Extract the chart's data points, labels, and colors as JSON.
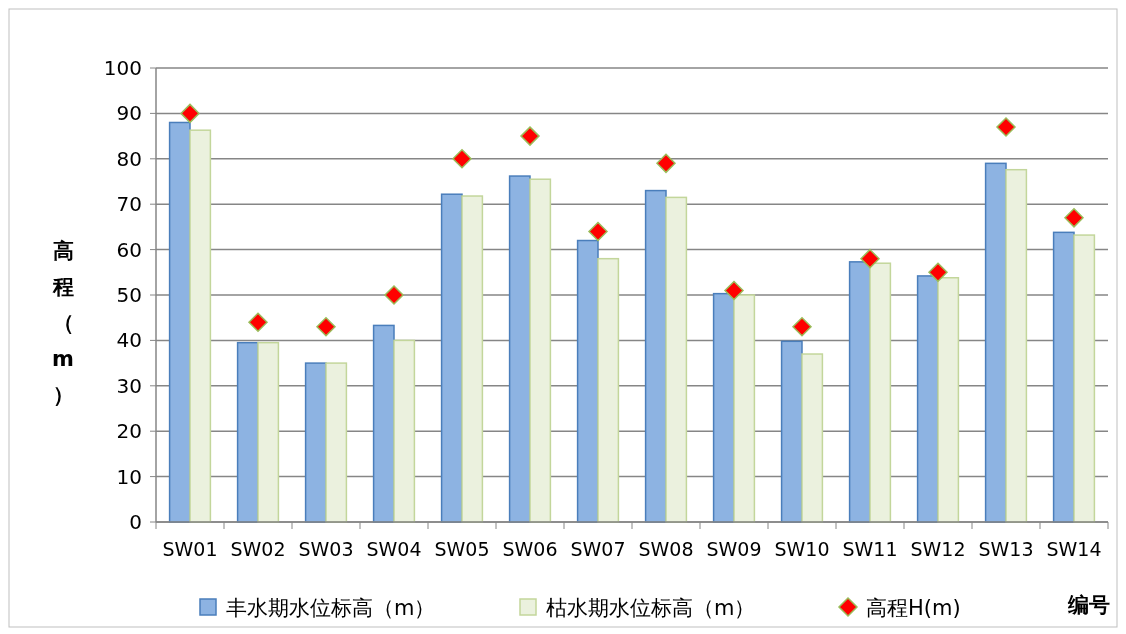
{
  "chart_data": {
    "type": "bar",
    "xlabel": "编号",
    "ylabel": "高程（m）",
    "categories": [
      "SW01",
      "SW02",
      "SW03",
      "SW04",
      "SW05",
      "SW06",
      "SW07",
      "SW08",
      "SW09",
      "SW10",
      "SW11",
      "SW12",
      "SW13",
      "SW14"
    ],
    "series": [
      {
        "name": "丰水期水位标高（m）",
        "color": "#8db3e2",
        "values": [
          88,
          39.5,
          35,
          43.3,
          72.2,
          76.2,
          62,
          73,
          50.3,
          39.8,
          57.3,
          54.2,
          79,
          63.8
        ]
      },
      {
        "name": "枯水期水位标高（m）",
        "color": "#ebf1de",
        "values": [
          86.3,
          39.5,
          35,
          40,
          71.8,
          75.5,
          58,
          71.5,
          50,
          37,
          57,
          53.8,
          77.6,
          63.2
        ]
      },
      {
        "name": "高程H(m)",
        "type": "scatter",
        "marker": "diamond",
        "color": "#ff0000",
        "values": [
          90,
          44,
          43,
          50,
          80,
          85,
          64,
          79,
          51,
          43,
          58,
          55,
          87,
          67
        ]
      }
    ],
    "ylim": [
      0,
      100
    ],
    "yticks": [
      0,
      10,
      20,
      30,
      40,
      50,
      60,
      70,
      80,
      90,
      100
    ],
    "grid": "y",
    "legend": "bottom"
  }
}
